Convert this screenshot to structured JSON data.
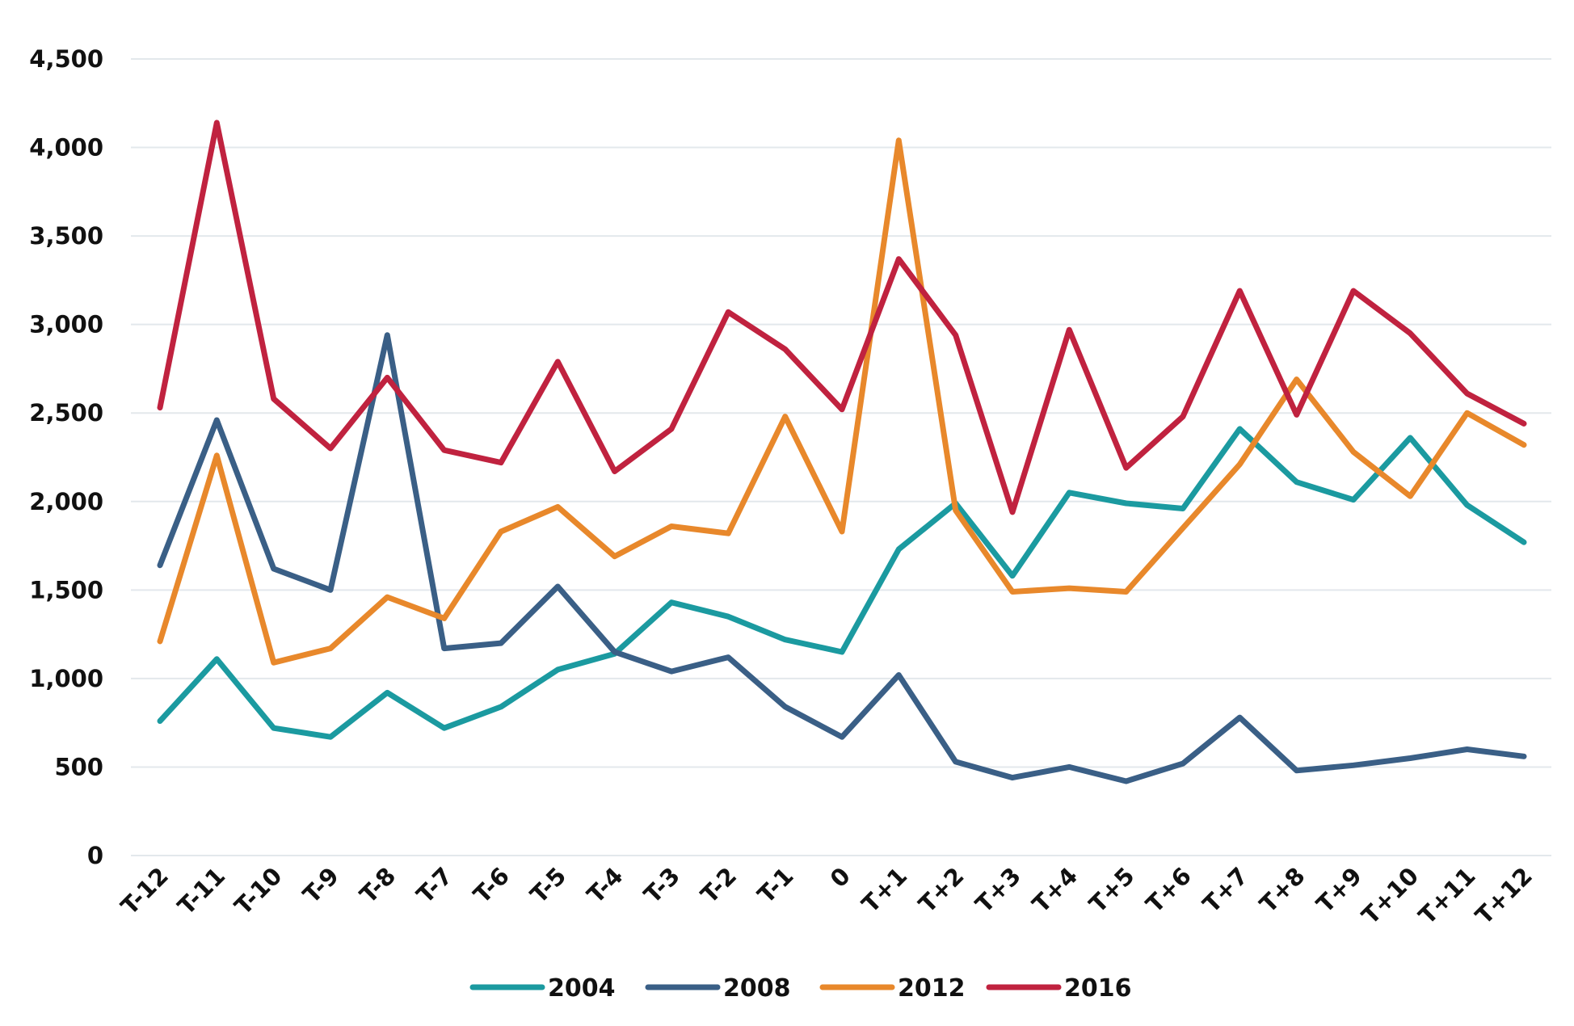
{
  "chart_data": {
    "type": "line",
    "title": "",
    "xlabel": "",
    "ylabel": "",
    "categories": [
      "T-12",
      "T-11",
      "T-10",
      "T-9",
      "T-8",
      "T-7",
      "T-6",
      "T-5",
      "T-4",
      "T-3",
      "T-2",
      "T-1",
      "0",
      "T+1",
      "T+2",
      "T+3",
      "T+4",
      "T+5",
      "T+6",
      "T+7",
      "T+8",
      "T+9",
      "T+10",
      "T+11",
      "T+12"
    ],
    "y_ticks": [
      "0",
      "500",
      "1,000",
      "1,500",
      "2,000",
      "2,500",
      "3,000",
      "3,500",
      "4,000",
      "4,500"
    ],
    "ylim": [
      0,
      4500
    ],
    "grid": true,
    "legend_position": "bottom",
    "series": [
      {
        "name": "2004",
        "color": "#1b9aa0",
        "values": [
          760,
          1110,
          720,
          670,
          920,
          720,
          840,
          1050,
          1140,
          1430,
          1350,
          1220,
          1150,
          1730,
          1990,
          1580,
          2050,
          1990,
          1960,
          2410,
          2110,
          2010,
          2360,
          1980,
          1770
        ]
      },
      {
        "name": "2008",
        "color": "#3a5f86",
        "values": [
          1640,
          2460,
          1620,
          1500,
          2940,
          1170,
          1200,
          1520,
          1150,
          1040,
          1120,
          840,
          670,
          1020,
          530,
          440,
          500,
          420,
          520,
          780,
          480,
          510,
          550,
          600,
          560
        ]
      },
      {
        "name": "2012",
        "color": "#e8882b",
        "values": [
          1210,
          2260,
          1090,
          1170,
          1460,
          1340,
          1830,
          1970,
          1690,
          1860,
          1820,
          2480,
          1830,
          4040,
          1950,
          1490,
          1510,
          1490,
          1850,
          2210,
          2690,
          2280,
          2030,
          2500,
          2320
        ]
      },
      {
        "name": "2016",
        "color": "#c0223f",
        "values": [
          2530,
          4140,
          2580,
          2300,
          2700,
          2290,
          2220,
          2790,
          2170,
          2410,
          3070,
          2860,
          2520,
          3370,
          2940,
          1940,
          2970,
          2190,
          2480,
          3190,
          2490,
          3190,
          2950,
          2610,
          2440
        ]
      }
    ]
  }
}
